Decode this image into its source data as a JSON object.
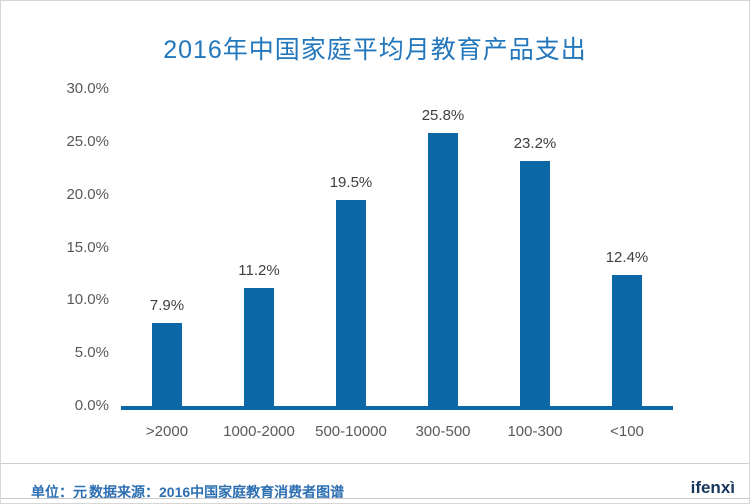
{
  "title": "2016年中国家庭平均月教育产品支出",
  "chart_data": {
    "type": "bar",
    "title": "2016年中国家庭平均月教育产品支出",
    "categories": [
      ">2000",
      "1000-2000",
      "500-10000",
      "300-500",
      "100-300",
      "<100"
    ],
    "values": [
      7.9,
      11.2,
      19.5,
      25.8,
      23.2,
      12.4
    ],
    "value_labels": [
      "7.9%",
      "11.2%",
      "19.5%",
      "25.8%",
      "23.2%",
      "12.4%"
    ],
    "xlabel": "",
    "ylabel": "",
    "ylim": [
      0,
      30
    ],
    "ytick_step": 5,
    "ytick_labels": [
      "0.0%",
      "5.0%",
      "10.0%",
      "15.0%",
      "20.0%",
      "25.0%",
      "30.0%"
    ],
    "grid": false,
    "legend": null,
    "bar_color": "#0c67a7"
  },
  "footer": {
    "unit_label": "单位：元",
    "source_label": "数据来源：2016中国家庭教育消费者图谱",
    "brand": "ifenxì"
  },
  "colors": {
    "bar": "#0c67a7",
    "title": "#2277bd",
    "footer_text": "#2d6fb2",
    "brand": "#17365d",
    "axis_labels": "#595959"
  }
}
